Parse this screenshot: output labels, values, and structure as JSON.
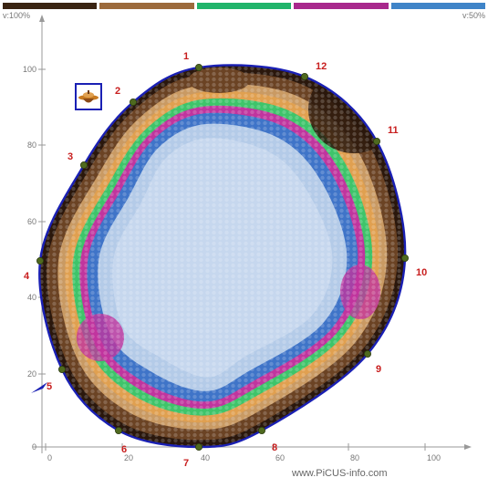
{
  "legend": {
    "colors": [
      "#3a2412",
      "#9c6a3c",
      "#20b46a",
      "#a8288c",
      "#3f84c8"
    ],
    "left_label": "v:100%",
    "right_label": "v:50%"
  },
  "axes": {
    "y_ticks": [
      "0",
      "20",
      "40",
      "60",
      "80",
      "100"
    ],
    "x_ticks": [
      "0",
      "20",
      "40",
      "60",
      "80",
      "100"
    ]
  },
  "markers": [
    "1",
    "2",
    "3",
    "4",
    "5",
    "6",
    "7",
    "8",
    "9",
    "10",
    "11",
    "12"
  ],
  "colors": {
    "outline": "#1a20b4",
    "marker_text": "#c81e1e",
    "dark_brown": "#2a170c",
    "brown": "#6b4324",
    "tan": "#c99a63",
    "orange": "#e0a050",
    "green": "#3ec46a",
    "magenta": "#c0359e",
    "blue": "#3f74c8",
    "light_blue": "#b4cbe8",
    "pale_blue": "#c6d7ee"
  },
  "icons": {
    "tree_icon": "tree-logo-icon",
    "north_arrow": "direction-arrow-icon"
  },
  "watermark": "www.PiCUS-info.com"
}
